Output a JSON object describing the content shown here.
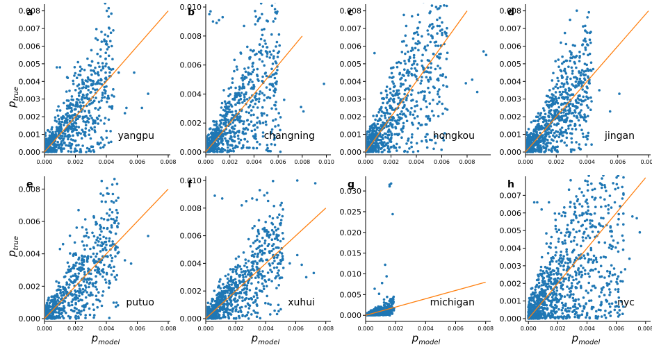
{
  "figure": {
    "ylabel_base": "p",
    "ylabel_sub": "true",
    "xlabel_base": "p",
    "xlabel_sub": "model",
    "colors": {
      "points": "#1f77b4",
      "reference_line": "#ff7f0e"
    }
  },
  "chart_data": [
    {
      "type": "scatter",
      "letter": "a",
      "name": "yangpu",
      "xlim": [
        0,
        0.008
      ],
      "ylim": [
        0,
        0.0083
      ],
      "xticks": [
        "0.000",
        "0.002",
        "0.004",
        "0.006",
        "0.008"
      ],
      "yticks": [
        "0.000",
        "0.001",
        "0.002",
        "0.003",
        "0.004",
        "0.005",
        "0.006",
        "0.007",
        "0.008"
      ],
      "xtick_values": [
        0,
        0.002,
        0.004,
        0.006,
        0.008
      ],
      "ytick_values": [
        0,
        0.001,
        0.002,
        0.003,
        0.004,
        0.005,
        0.006,
        0.007,
        0.008
      ],
      "diagonal": [
        [
          0,
          0
        ],
        [
          0.008,
          0.008
        ]
      ],
      "cluster": {
        "n": 700,
        "xmax": 0.0045,
        "spread": 0.55
      },
      "points": [
        [
          0.0008,
          0.0048
        ],
        [
          0.001,
          0.0048
        ],
        [
          0.004,
          0.005
        ],
        [
          0.0048,
          0.0045
        ],
        [
          0.0058,
          0.0045
        ],
        [
          0.0015,
          0.0042
        ],
        [
          0.0021,
          0.0042
        ],
        [
          0.0067,
          0.0033
        ],
        [
          0.0063,
          0.0025
        ],
        [
          0.0053,
          0.0025
        ],
        [
          0.0052,
          0.0022
        ],
        [
          0.0031,
          0.0038
        ],
        [
          0.0035,
          0.0039
        ]
      ]
    },
    {
      "type": "scatter",
      "letter": "b",
      "name": "changning",
      "xlim": [
        0,
        0.0102
      ],
      "ylim": [
        0,
        0.0101
      ],
      "xticks": [
        "0.000",
        "0.002",
        "0.004",
        "0.006",
        "0.008",
        "0.010"
      ],
      "yticks": [
        "0.000",
        "0.002",
        "0.004",
        "0.006",
        "0.008",
        "0.010"
      ],
      "xtick_values": [
        0,
        0.002,
        0.004,
        0.006,
        0.008,
        0.01
      ],
      "ytick_values": [
        0,
        0.002,
        0.004,
        0.006,
        0.008,
        0.01
      ],
      "diagonal": [
        [
          0,
          0
        ],
        [
          0.008,
          0.008
        ]
      ],
      "cluster": {
        "n": 750,
        "xmax": 0.0062,
        "spread": 0.6
      },
      "points": [
        [
          0.0003,
          0.0095
        ],
        [
          0.0004,
          0.0097
        ],
        [
          0.0006,
          0.009
        ],
        [
          0.0009,
          0.0089
        ],
        [
          0.0011,
          0.0091
        ],
        [
          0.0014,
          0.0093
        ],
        [
          0.0098,
          0.0047
        ],
        [
          0.0065,
          0.0036
        ],
        [
          0.0079,
          0.0031
        ],
        [
          0.0081,
          0.0028
        ],
        [
          0.0058,
          0.0043
        ],
        [
          0.0062,
          0.0024
        ],
        [
          0.0054,
          0.0052
        ]
      ]
    },
    {
      "type": "scatter",
      "letter": "c",
      "name": "hongkou",
      "xlim": [
        0,
        0.0097
      ],
      "ylim": [
        0,
        0.0083
      ],
      "xticks": [
        "0.000",
        "0.002",
        "0.004",
        "0.006",
        "0.008"
      ],
      "yticks": [
        "0.000",
        "0.001",
        "0.002",
        "0.003",
        "0.004",
        "0.005",
        "0.006",
        "0.007",
        "0.008"
      ],
      "xtick_values": [
        0,
        0.002,
        0.004,
        0.006,
        0.008
      ],
      "ytick_values": [
        0,
        0.001,
        0.002,
        0.003,
        0.004,
        0.005,
        0.006,
        0.007,
        0.008
      ],
      "diagonal": [
        [
          0,
          0
        ],
        [
          0.008,
          0.008
        ]
      ],
      "cluster": {
        "n": 800,
        "xmax": 0.0065,
        "spread": 0.6
      },
      "points": [
        [
          0.0007,
          0.0056
        ],
        [
          0.0045,
          0.0055
        ],
        [
          0.0049,
          0.0052
        ],
        [
          0.0093,
          0.0057
        ],
        [
          0.0095,
          0.0055
        ],
        [
          0.0079,
          0.0039
        ],
        [
          0.0088,
          0.0034
        ],
        [
          0.0084,
          0.0041
        ],
        [
          0.0061,
          0.0044
        ],
        [
          0.0055,
          0.0047
        ]
      ]
    },
    {
      "type": "scatter",
      "letter": "d",
      "name": "jingan",
      "xlim": [
        0,
        0.008
      ],
      "ylim": [
        0,
        0.0083
      ],
      "xticks": [
        "0.000",
        "0.002",
        "0.004",
        "0.006",
        "0.008"
      ],
      "yticks": [
        "0.000",
        "0.001",
        "0.002",
        "0.003",
        "0.004",
        "0.005",
        "0.006",
        "0.007",
        "0.008"
      ],
      "xtick_values": [
        0,
        0.002,
        0.004,
        0.006,
        0.008
      ],
      "ytick_values": [
        0,
        0.001,
        0.002,
        0.003,
        0.004,
        0.005,
        0.006,
        0.007,
        0.008
      ],
      "diagonal": [
        [
          0,
          0
        ],
        [
          0.008,
          0.008
        ]
      ],
      "cluster": {
        "n": 850,
        "xmax": 0.0043,
        "spread": 0.55
      },
      "points": [
        [
          0.0023,
          0.0062
        ],
        [
          0.0024,
          0.0054
        ],
        [
          0.0025,
          0.0051
        ],
        [
          0.0035,
          0.0045
        ],
        [
          0.0041,
          0.0046
        ],
        [
          0.0044,
          0.0047
        ],
        [
          0.0061,
          0.0033
        ],
        [
          0.0055,
          0.0023
        ],
        [
          0.0048,
          0.0035
        ]
      ]
    },
    {
      "type": "scatter",
      "letter": "e",
      "name": "putuo",
      "xlim": [
        0,
        0.008
      ],
      "ylim": [
        0,
        0.0087
      ],
      "xticks": [
        "0.000",
        "0.002",
        "0.004",
        "0.006",
        "0.008"
      ],
      "yticks": [
        "0.000",
        "0.002",
        "0.004",
        "0.006",
        "0.008"
      ],
      "xtick_values": [
        0,
        0.002,
        0.004,
        0.006,
        0.008
      ],
      "ytick_values": [
        0,
        0.002,
        0.004,
        0.006,
        0.008
      ],
      "diagonal": [
        [
          0,
          0
        ],
        [
          0.008,
          0.008
        ]
      ],
      "cluster": {
        "n": 650,
        "xmax": 0.0048,
        "spread": 0.5
      },
      "points": [
        [
          0.0037,
          0.0085
        ],
        [
          0.0022,
          0.0067
        ],
        [
          0.0027,
          0.0055
        ],
        [
          0.0031,
          0.0053
        ],
        [
          0.0037,
          0.0047
        ],
        [
          0.0067,
          0.0051
        ],
        [
          0.0056,
          0.0034
        ],
        [
          0.0048,
          0.0041
        ],
        [
          0.0052,
          0.0036
        ],
        [
          0.0045,
          0.0032
        ],
        [
          0.001,
          0.0043
        ],
        [
          0.0012,
          0.0046
        ]
      ]
    },
    {
      "type": "scatter",
      "letter": "f",
      "name": "xuhui",
      "xlim": [
        0,
        0.0082
      ],
      "ylim": [
        0,
        0.0102
      ],
      "xticks": [
        "0.000",
        "0.002",
        "0.004",
        "0.006",
        "0.008"
      ],
      "yticks": [
        "0.000",
        "0.002",
        "0.004",
        "0.006",
        "0.008",
        "0.010"
      ],
      "xtick_values": [
        0,
        0.002,
        0.004,
        0.006,
        0.008
      ],
      "ytick_values": [
        0,
        0.002,
        0.004,
        0.006,
        0.008,
        0.01
      ],
      "diagonal": [
        [
          0,
          0
        ],
        [
          0.008,
          0.008
        ]
      ],
      "cluster": {
        "n": 750,
        "xmax": 0.0052,
        "spread": 0.5
      },
      "points": [
        [
          0.0006,
          0.0089
        ],
        [
          0.0011,
          0.0087
        ],
        [
          0.0024,
          0.0082
        ],
        [
          0.0027,
          0.0085
        ],
        [
          0.0031,
          0.0087
        ],
        [
          0.0034,
          0.0086
        ],
        [
          0.0036,
          0.0093
        ],
        [
          0.0041,
          0.0091
        ],
        [
          0.0061,
          0.01
        ],
        [
          0.0073,
          0.0098
        ],
        [
          0.0061,
          0.0046
        ],
        [
          0.0064,
          0.0039
        ],
        [
          0.0072,
          0.0033
        ],
        [
          0.0067,
          0.003
        ],
        [
          0.0056,
          0.004
        ]
      ]
    },
    {
      "type": "scatter",
      "letter": "g",
      "name": "michigan",
      "xlim": [
        0,
        0.0082
      ],
      "ylim": [
        -0.0008,
        0.0332
      ],
      "xticks": [
        "0.000",
        "0.002",
        "0.004",
        "0.006",
        "0.008"
      ],
      "yticks": [
        "0.000",
        "0.005",
        "0.010",
        "0.015",
        "0.020",
        "0.025",
        "0.030"
      ],
      "xtick_values": [
        0,
        0.002,
        0.004,
        0.006,
        0.008
      ],
      "ytick_values": [
        0,
        0.005,
        0.01,
        0.015,
        0.02,
        0.025,
        0.03
      ],
      "diagonal": [
        [
          0,
          0
        ],
        [
          0.008,
          0.008
        ]
      ],
      "cluster": {
        "n": 450,
        "xmax": 0.0019,
        "spread": 0.7
      },
      "points": [
        [
          0.0016,
          0.0315
        ],
        [
          0.0016,
          0.0311
        ],
        [
          0.0017,
          0.0318
        ],
        [
          0.0018,
          0.0244
        ],
        [
          0.0013,
          0.0122
        ],
        [
          0.0014,
          0.0094
        ],
        [
          0.0011,
          0.0078
        ],
        [
          0.0006,
          0.0064
        ],
        [
          0.0009,
          0.0052
        ]
      ]
    },
    {
      "type": "scatter",
      "letter": "h",
      "name": "nyc",
      "xlim": [
        -0.0002,
        0.0082
      ],
      "ylim": [
        0,
        0.008
      ],
      "xticks": [
        "0.000",
        "0.002",
        "0.004",
        "0.006",
        "0.008"
      ],
      "yticks": [
        "0.000",
        "0.001",
        "0.002",
        "0.003",
        "0.004",
        "0.005",
        "0.006",
        "0.007"
      ],
      "xtick_values": [
        0,
        0.002,
        0.004,
        0.006,
        0.008
      ],
      "ytick_values": [
        0,
        0.001,
        0.002,
        0.003,
        0.004,
        0.005,
        0.006,
        0.007
      ],
      "diagonal": [
        [
          0,
          0
        ],
        [
          0.008,
          0.008
        ]
      ],
      "cluster": {
        "n": 1100,
        "xmax": 0.0065,
        "spread": 0.9
      },
      "points": [
        [
          0.0004,
          0.0066
        ],
        [
          0.0006,
          0.0066
        ],
        [
          0.0009,
          0.0062
        ],
        [
          0.0014,
          0.0066
        ],
        [
          0.0035,
          0.0065
        ],
        [
          0.0059,
          0.0066
        ],
        [
          0.0071,
          0.0058
        ],
        [
          0.0074,
          0.0057
        ],
        [
          0.0076,
          0.0049
        ],
        [
          0.0061,
          0.0043
        ],
        [
          0.0069,
          0.0034
        ],
        [
          0.0066,
          0.0028
        ]
      ]
    }
  ]
}
